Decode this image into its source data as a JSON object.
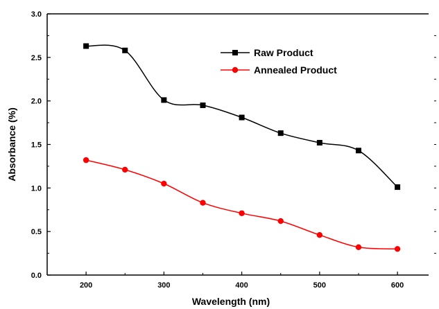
{
  "chart_data": {
    "type": "line",
    "xlabel": "Wavelength (nm)",
    "ylabel": "Absorbance (%)",
    "xlim": [
      150,
      640
    ],
    "ylim": [
      0.0,
      3.0
    ],
    "xticks": [
      200,
      300,
      400,
      500,
      600
    ],
    "yticks": [
      "0.0",
      "0.5",
      "1.0",
      "1.5",
      "2.0",
      "2.5",
      "3.0"
    ],
    "x": [
      200,
      250,
      300,
      350,
      400,
      450,
      500,
      550,
      600
    ],
    "series": [
      {
        "name": "Raw Product",
        "color": "#000000",
        "marker": "square",
        "values": [
          2.63,
          2.58,
          2.01,
          1.95,
          1.81,
          1.63,
          1.52,
          1.43,
          1.01
        ]
      },
      {
        "name": "Annealed Product",
        "color": "#ff0000",
        "marker": "circle",
        "values": [
          1.32,
          1.21,
          1.05,
          0.83,
          0.71,
          0.62,
          0.46,
          0.32,
          0.3
        ]
      }
    ],
    "legend_position": "top-right",
    "grid": false
  }
}
